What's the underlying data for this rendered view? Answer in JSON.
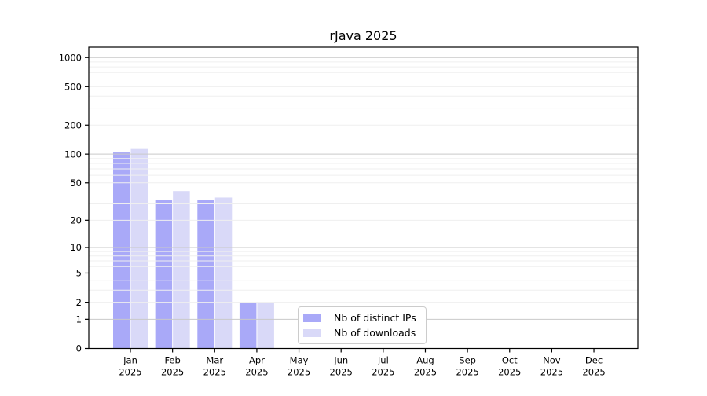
{
  "chart_data": {
    "type": "bar",
    "title": "rJava 2025",
    "scale": "log1p",
    "grid": "on",
    "categories": [
      "Jan",
      "Feb",
      "Mar",
      "Apr",
      "May",
      "Jun",
      "Jul",
      "Aug",
      "Sep",
      "Oct",
      "Nov",
      "Dec"
    ],
    "year_label": "2025",
    "series": [
      {
        "name": "Nb of distinct IPs",
        "color": "#a9a9f8",
        "values": [
          104,
          33,
          33,
          2,
          0,
          0,
          0,
          0,
          0,
          0,
          0,
          0
        ]
      },
      {
        "name": "Nb of downloads",
        "color": "#d9d9f8",
        "values": [
          113,
          41,
          35,
          2,
          0,
          0,
          0,
          0,
          0,
          0,
          0,
          0
        ]
      }
    ],
    "y_ticks": [
      0,
      1,
      2,
      5,
      10,
      20,
      50,
      100,
      200,
      500,
      1000
    ],
    "ylim": [
      0,
      1280
    ],
    "legend_position": "lower center",
    "colors": {
      "major_grid": "#c9c9c9",
      "minor_grid": "#efefef",
      "spine": "#000000",
      "background": "#ffffff",
      "text": "#000000",
      "legend_border": "#cccccc",
      "legend_bg": "#ffffff"
    }
  }
}
